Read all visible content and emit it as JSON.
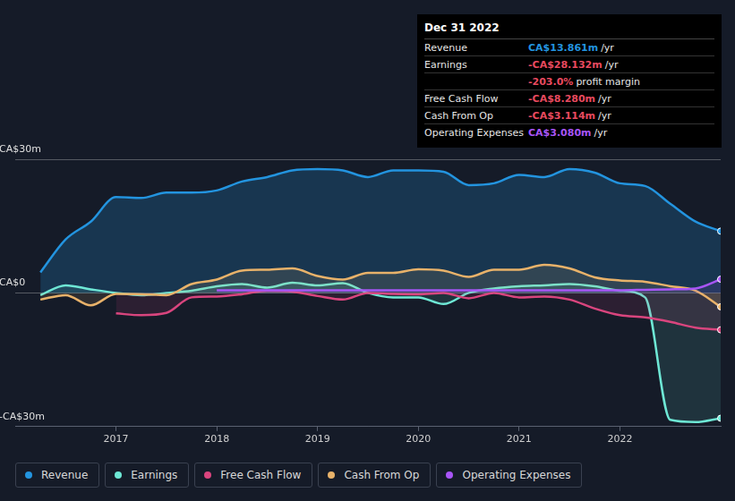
{
  "chart_data": {
    "type": "line",
    "x": [
      2016.25,
      2016.5,
      2016.75,
      2017,
      2017.25,
      2017.5,
      2017.75,
      2018,
      2018.25,
      2018.5,
      2018.75,
      2019,
      2019.25,
      2019.5,
      2019.75,
      2020,
      2020.25,
      2020.5,
      2020.75,
      2021,
      2021.25,
      2021.5,
      2021.75,
      2022,
      2022.25,
      2022.5,
      2022.75,
      2023
    ],
    "series": [
      {
        "name": "Revenue",
        "color": "#2394df",
        "values": [
          4.6,
          12,
          16,
          21.5,
          21.3,
          22.5,
          22.5,
          23,
          25,
          26,
          27.5,
          27.8,
          27.5,
          26,
          27.5,
          27.5,
          27.2,
          24.2,
          24.6,
          26.5,
          26,
          27.8,
          27,
          24.6,
          24,
          20,
          16,
          13.861
        ]
      },
      {
        "name": "Earnings",
        "color": "#6ee7d5",
        "values": [
          -0.5,
          1.7,
          0.8,
          0,
          -0.5,
          0,
          0.5,
          1.5,
          2,
          1.2,
          2.3,
          1.7,
          2.2,
          0,
          -1,
          -1,
          -2.5,
          0,
          1,
          1.5,
          1.7,
          2,
          1.5,
          0.5,
          -1,
          -28.5,
          -29,
          -28.132
        ]
      },
      {
        "name": "Free Cash Flow",
        "color": "#d9457e",
        "values": [
          null,
          null,
          null,
          -4.6,
          -5,
          -4.5,
          -1,
          -0.8,
          -0.3,
          0.5,
          0.3,
          -0.7,
          -1.5,
          0,
          -0.2,
          -0.3,
          0,
          -1.2,
          0,
          -1,
          -0.8,
          -1.5,
          -3.5,
          -5,
          -5.5,
          -6.5,
          -7.8,
          -8.28
        ]
      },
      {
        "name": "Cash From Op",
        "color": "#e8b26a",
        "values": [
          -1.5,
          -0.5,
          -2.8,
          -0.2,
          -0.3,
          -0.5,
          2,
          3,
          5,
          5.2,
          5.5,
          3.8,
          3,
          4.5,
          4.5,
          5.3,
          5,
          3.6,
          5.2,
          5.2,
          6.3,
          5.5,
          3.5,
          2.8,
          2.5,
          1.5,
          0.5,
          -3.114
        ]
      },
      {
        "name": "Operating Expenses",
        "color": "#a855f7",
        "values": [
          null,
          null,
          null,
          null,
          null,
          null,
          null,
          0.6,
          0.6,
          0.6,
          0.6,
          0.6,
          0.6,
          0.6,
          0.6,
          0.6,
          0.6,
          0.6,
          0.6,
          0.6,
          0.6,
          0.6,
          0.6,
          0.6,
          0.7,
          0.8,
          1,
          3.08
        ]
      }
    ],
    "xlim": [
      2016,
      2023
    ],
    "xticks": [
      2017,
      2018,
      2019,
      2020,
      2021,
      2022
    ],
    "ylim": [
      -30,
      30
    ],
    "yticks": [
      {
        "value": -30,
        "label": "-CA$30m"
      },
      {
        "value": 0,
        "label": "CA$0"
      },
      {
        "value": 30,
        "label": "CA$30m"
      }
    ],
    "grid": true,
    "legend": "bottom"
  },
  "info_box": {
    "title": "Dec 31 2022",
    "rows": [
      {
        "label": "Revenue",
        "value": "CA$13.861m",
        "unit": "/yr",
        "color": "#2394df"
      },
      {
        "label": "Earnings",
        "value": "-CA$28.132m",
        "unit": "/yr",
        "color": "#e84a5f"
      },
      {
        "value": "-203.0%",
        "unit": "profit margin",
        "color": "#e84a5f"
      },
      {
        "label": "Free Cash Flow",
        "value": "-CA$8.280m",
        "unit": "/yr",
        "color": "#e84a5f"
      },
      {
        "label": "Cash From Op",
        "value": "-CA$3.114m",
        "unit": "/yr",
        "color": "#e84a5f"
      },
      {
        "label": "Operating Expenses",
        "value": "CA$3.080m",
        "unit": "/yr",
        "color": "#a855f7"
      }
    ]
  }
}
